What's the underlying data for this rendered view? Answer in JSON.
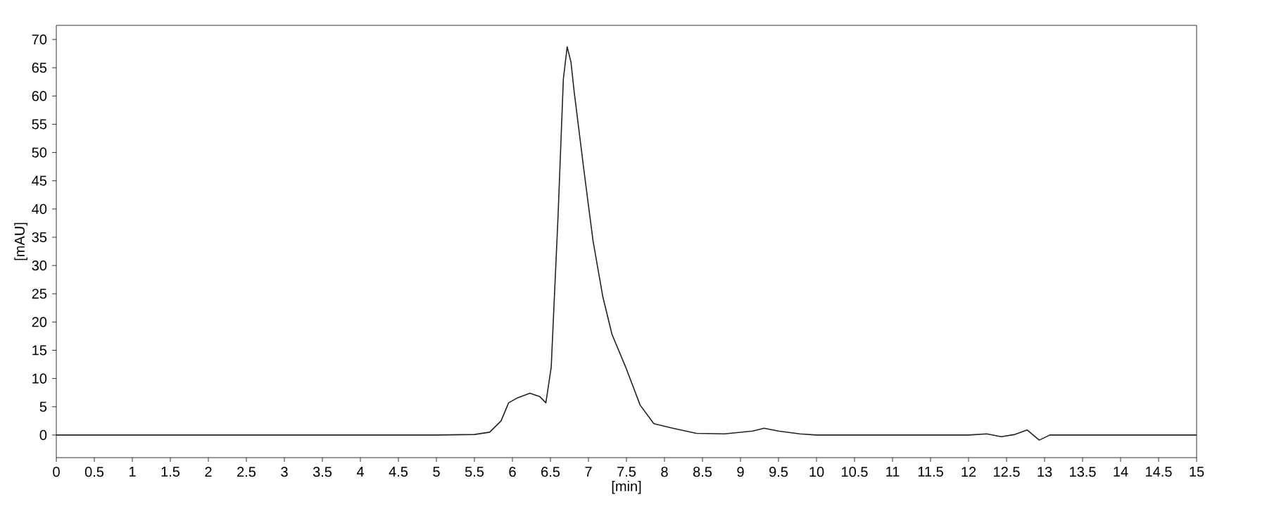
{
  "chart_data": {
    "type": "line",
    "xlabel": "[min]",
    "ylabel": "[mAU]",
    "xlim": [
      0,
      15
    ],
    "ylim": [
      -4,
      72.5
    ],
    "xticks": [
      0,
      0.5,
      1,
      1.5,
      2,
      2.5,
      3,
      3.5,
      4,
      4.5,
      5,
      5.5,
      6,
      6.5,
      7,
      7.5,
      8,
      8.5,
      9,
      9.5,
      10,
      10.5,
      11,
      11.5,
      12,
      12.5,
      13,
      13.5,
      14,
      14.5,
      15
    ],
    "yticks": [
      0,
      5,
      10,
      15,
      20,
      25,
      30,
      35,
      40,
      45,
      50,
      55,
      60,
      65,
      70
    ],
    "grid": false,
    "marker": "none",
    "line_style": "solid",
    "series": [
      {
        "color": "#222222",
        "x": [
          0,
          1,
          2,
          3,
          4,
          5,
          5.5,
          5.7,
          5.85,
          5.95,
          6.07,
          6.23,
          6.36,
          6.44,
          6.51,
          6.6,
          6.67,
          6.72,
          6.77,
          6.81,
          6.94,
          7.06,
          7.19,
          7.31,
          7.49,
          7.68,
          7.86,
          8.11,
          8.42,
          8.79,
          9.16,
          9.31,
          9.5,
          9.78,
          10,
          11,
          12,
          12.24,
          12.43,
          12.61,
          12.77,
          12.93,
          13.07,
          14,
          15
        ],
        "values": [
          0,
          0,
          0,
          0,
          0,
          0,
          0.1,
          0.5,
          2.5,
          5.7,
          6.6,
          7.4,
          6.8,
          5.7,
          12,
          38.7,
          63,
          68.7,
          66,
          61,
          46.9,
          34.4,
          24.4,
          17.8,
          12,
          5.3,
          2,
          1.2,
          0.3,
          0.2,
          0.7,
          1.2,
          0.7,
          0.2,
          0,
          0,
          0,
          0.2,
          -0.3,
          0.1,
          0.9,
          -0.9,
          0,
          0,
          0
        ]
      }
    ]
  }
}
